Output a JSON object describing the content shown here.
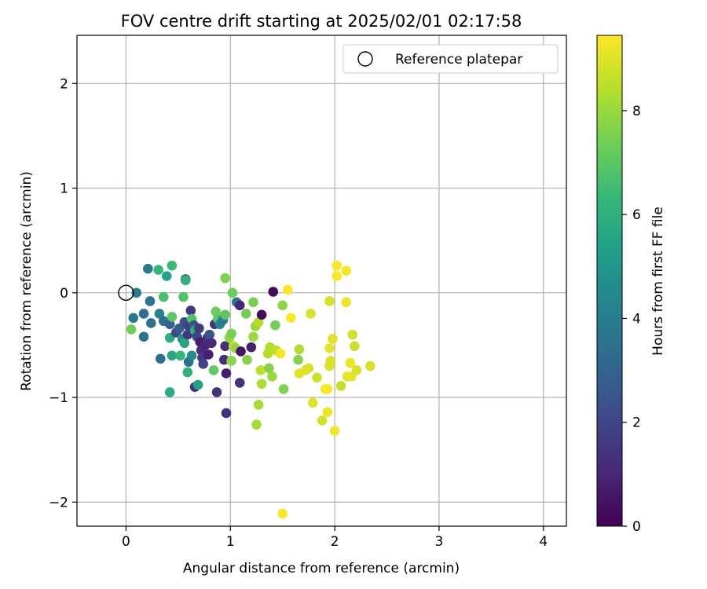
{
  "chart_data": {
    "type": "scatter",
    "title": "FOV centre drift starting at 2025/02/01 02:17:58",
    "xlabel": "Angular distance from reference (arcmin)",
    "ylabel": "Rotation from reference (arcmin)",
    "xlim": [
      -0.47,
      4.22
    ],
    "ylim": [
      -2.23,
      2.46
    ],
    "xticks": [
      0,
      1,
      2,
      3,
      4
    ],
    "yticks": [
      2,
      1,
      0,
      -1,
      -2
    ],
    "grid": true,
    "legend": {
      "position": "top-right",
      "entries": [
        "Reference platepar"
      ]
    },
    "reference_point": {
      "x": 0,
      "y": 0,
      "label": "Reference platepar"
    },
    "colorbar": {
      "label": "Hours from first FF file",
      "range": [
        0,
        9.45
      ],
      "ticks": [
        0,
        2,
        4,
        6,
        8
      ],
      "colormap": "viridis",
      "colormap_stops": [
        "#440154",
        "#482878",
        "#3e4989",
        "#31688e",
        "#26828e",
        "#1f9e89",
        "#35b779",
        "#6ece58",
        "#b5de2b",
        "#fde725"
      ]
    },
    "points": [
      {
        "x": 0.1,
        "y": 0.0,
        "h": 3.9
      },
      {
        "x": 0.21,
        "y": 0.23,
        "h": 3.8
      },
      {
        "x": 0.23,
        "y": -0.08,
        "h": 3.6
      },
      {
        "x": 0.31,
        "y": 0.22,
        "h": 6.3
      },
      {
        "x": 0.39,
        "y": 0.16,
        "h": 5.5
      },
      {
        "x": 0.44,
        "y": 0.26,
        "h": 6.4
      },
      {
        "x": 0.36,
        "y": -0.04,
        "h": 6.6
      },
      {
        "x": 0.07,
        "y": -0.24,
        "h": 3.8
      },
      {
        "x": 0.05,
        "y": -0.35,
        "h": 7.4
      },
      {
        "x": 0.17,
        "y": -0.2,
        "h": 3.4
      },
      {
        "x": 0.24,
        "y": -0.29,
        "h": 3.5
      },
      {
        "x": 0.17,
        "y": -0.42,
        "h": 3.6
      },
      {
        "x": 0.32,
        "y": -0.2,
        "h": 4.2
      },
      {
        "x": 0.36,
        "y": -0.27,
        "h": 3.3
      },
      {
        "x": 0.42,
        "y": -0.3,
        "h": 2.9
      },
      {
        "x": 0.44,
        "y": -0.23,
        "h": 7.0
      },
      {
        "x": 0.42,
        "y": -0.43,
        "h": 5.9
      },
      {
        "x": 0.44,
        "y": -0.6,
        "h": 5.6
      },
      {
        "x": 0.33,
        "y": -0.63,
        "h": 3.4
      },
      {
        "x": 0.42,
        "y": -0.95,
        "h": 5.8
      },
      {
        "x": 0.48,
        "y": -0.38,
        "h": 2.1
      },
      {
        "x": 0.51,
        "y": -0.34,
        "h": 2.7
      },
      {
        "x": 0.52,
        "y": -0.6,
        "h": 6.2
      },
      {
        "x": 0.54,
        "y": -0.44,
        "h": 4.8
      },
      {
        "x": 0.56,
        "y": -0.48,
        "h": 5.6
      },
      {
        "x": 0.55,
        "y": -0.04,
        "h": 6.8
      },
      {
        "x": 0.57,
        "y": 0.13,
        "h": 1.9
      },
      {
        "x": 0.57,
        "y": 0.12,
        "h": 6.1
      },
      {
        "x": 0.56,
        "y": -0.28,
        "h": 2.3
      },
      {
        "x": 0.59,
        "y": -0.4,
        "h": 1.6
      },
      {
        "x": 0.6,
        "y": -0.32,
        "h": 1.8
      },
      {
        "x": 0.62,
        "y": -0.17,
        "h": 1.5
      },
      {
        "x": 0.63,
        "y": -0.25,
        "h": 6.8
      },
      {
        "x": 0.59,
        "y": -0.76,
        "h": 6.0
      },
      {
        "x": 0.6,
        "y": -0.66,
        "h": 3.3
      },
      {
        "x": 0.63,
        "y": -0.6,
        "h": 4.6
      },
      {
        "x": 0.65,
        "y": -0.31,
        "h": 2.5
      },
      {
        "x": 0.66,
        "y": -0.36,
        "h": 5.9
      },
      {
        "x": 0.68,
        "y": -0.42,
        "h": 2.0
      },
      {
        "x": 0.66,
        "y": -0.9,
        "h": 1.3
      },
      {
        "x": 0.69,
        "y": -0.88,
        "h": 5.4
      },
      {
        "x": 0.7,
        "y": -0.34,
        "h": 1.7
      },
      {
        "x": 0.71,
        "y": -0.47,
        "h": 0.8
      },
      {
        "x": 0.72,
        "y": -0.55,
        "h": 1.2
      },
      {
        "x": 0.73,
        "y": -0.62,
        "h": 1.6
      },
      {
        "x": 0.74,
        "y": -0.68,
        "h": 1.9
      },
      {
        "x": 0.76,
        "y": -0.5,
        "h": 1.0
      },
      {
        "x": 0.78,
        "y": -0.43,
        "h": 1.3
      },
      {
        "x": 0.79,
        "y": -0.59,
        "h": 0.9
      },
      {
        "x": 0.8,
        "y": -0.4,
        "h": 2.4
      },
      {
        "x": 0.82,
        "y": -0.48,
        "h": 1.1
      },
      {
        "x": 0.84,
        "y": -0.74,
        "h": 7.1
      },
      {
        "x": 0.85,
        "y": -0.3,
        "h": 1.4
      },
      {
        "x": 0.86,
        "y": -0.18,
        "h": 7.3
      },
      {
        "x": 0.87,
        "y": -0.95,
        "h": 1.4
      },
      {
        "x": 0.88,
        "y": -0.25,
        "h": 7.0
      },
      {
        "x": 0.9,
        "y": -0.3,
        "h": 4.3
      },
      {
        "x": 0.93,
        "y": -0.26,
        "h": 3.9
      },
      {
        "x": 0.94,
        "y": -0.64,
        "h": 1.2
      },
      {
        "x": 0.95,
        "y": -0.21,
        "h": 7.0
      },
      {
        "x": 0.95,
        "y": 0.14,
        "h": 7.6
      },
      {
        "x": 0.95,
        "y": -0.51,
        "h": 1.3
      },
      {
        "x": 0.96,
        "y": -0.77,
        "h": 0.8
      },
      {
        "x": 0.96,
        "y": -1.15,
        "h": 1.3
      },
      {
        "x": 0.99,
        "y": -0.43,
        "h": 7.9
      },
      {
        "x": 1.01,
        "y": -0.39,
        "h": 7.5
      },
      {
        "x": 1.01,
        "y": -0.65,
        "h": 7.8
      },
      {
        "x": 1.02,
        "y": 0.0,
        "h": 7.3
      },
      {
        "x": 1.03,
        "y": -0.51,
        "h": 8.5
      },
      {
        "x": 1.05,
        "y": -0.53,
        "h": 7.9
      },
      {
        "x": 1.06,
        "y": -0.09,
        "h": 3.8
      },
      {
        "x": 1.09,
        "y": -0.12,
        "h": 1.0
      },
      {
        "x": 1.1,
        "y": -0.56,
        "h": 0.5
      },
      {
        "x": 1.09,
        "y": -0.86,
        "h": 1.3
      },
      {
        "x": 1.15,
        "y": -0.2,
        "h": 7.4
      },
      {
        "x": 1.16,
        "y": -0.64,
        "h": 7.7
      },
      {
        "x": 1.2,
        "y": -0.52,
        "h": 0.8
      },
      {
        "x": 1.22,
        "y": -0.09,
        "h": 7.5
      },
      {
        "x": 1.22,
        "y": -0.42,
        "h": 8.0
      },
      {
        "x": 1.24,
        "y": -0.32,
        "h": 8.0
      },
      {
        "x": 1.25,
        "y": -1.26,
        "h": 8.2
      },
      {
        "x": 1.27,
        "y": -0.28,
        "h": 8.4
      },
      {
        "x": 1.27,
        "y": -1.07,
        "h": 8.2
      },
      {
        "x": 1.3,
        "y": -0.21,
        "h": 0.2
      },
      {
        "x": 1.29,
        "y": -0.74,
        "h": 8.5
      },
      {
        "x": 1.3,
        "y": -0.87,
        "h": 8.3
      },
      {
        "x": 1.36,
        "y": -0.58,
        "h": 8.4
      },
      {
        "x": 1.37,
        "y": -0.72,
        "h": 7.7
      },
      {
        "x": 1.38,
        "y": -0.52,
        "h": 8.4
      },
      {
        "x": 1.4,
        "y": -0.8,
        "h": 8.0
      },
      {
        "x": 1.41,
        "y": 0.01,
        "h": 0.3
      },
      {
        "x": 1.43,
        "y": -0.31,
        "h": 7.4
      },
      {
        "x": 1.44,
        "y": -0.55,
        "h": 8.5
      },
      {
        "x": 1.48,
        "y": -0.58,
        "h": 9.3
      },
      {
        "x": 1.5,
        "y": -0.12,
        "h": 7.8
      },
      {
        "x": 1.51,
        "y": -0.92,
        "h": 7.6
      },
      {
        "x": 1.55,
        "y": 0.03,
        "h": 9.4
      },
      {
        "x": 1.58,
        "y": -0.24,
        "h": 9.4
      },
      {
        "x": 1.5,
        "y": -2.11,
        "h": 9.4
      },
      {
        "x": 1.65,
        "y": -0.64,
        "h": 7.7
      },
      {
        "x": 1.66,
        "y": -0.77,
        "h": 9.0
      },
      {
        "x": 1.66,
        "y": -0.54,
        "h": 8.3
      },
      {
        "x": 1.72,
        "y": -0.74,
        "h": 9.0
      },
      {
        "x": 1.75,
        "y": -0.72,
        "h": 8.9
      },
      {
        "x": 1.77,
        "y": -0.2,
        "h": 8.9
      },
      {
        "x": 1.79,
        "y": -1.05,
        "h": 9.0
      },
      {
        "x": 1.83,
        "y": -0.81,
        "h": 8.7
      },
      {
        "x": 1.88,
        "y": -1.22,
        "h": 8.8
      },
      {
        "x": 1.91,
        "y": -0.92,
        "h": 9.4
      },
      {
        "x": 1.93,
        "y": -0.92,
        "h": 9.4
      },
      {
        "x": 1.93,
        "y": -1.14,
        "h": 9.2
      },
      {
        "x": 1.95,
        "y": -0.08,
        "h": 8.9
      },
      {
        "x": 1.95,
        "y": -0.7,
        "h": 9.0
      },
      {
        "x": 1.95,
        "y": -0.53,
        "h": 9.1
      },
      {
        "x": 1.96,
        "y": -0.65,
        "h": 8.9
      },
      {
        "x": 1.98,
        "y": -0.44,
        "h": 9.0
      },
      {
        "x": 2.0,
        "y": -1.32,
        "h": 9.3
      },
      {
        "x": 2.02,
        "y": 0.26,
        "h": 9.4
      },
      {
        "x": 2.02,
        "y": 0.16,
        "h": 9.4
      },
      {
        "x": 2.06,
        "y": -0.89,
        "h": 8.6
      },
      {
        "x": 2.11,
        "y": 0.21,
        "h": 9.3
      },
      {
        "x": 2.11,
        "y": -0.09,
        "h": 9.2
      },
      {
        "x": 2.12,
        "y": -0.8,
        "h": 9.1
      },
      {
        "x": 2.15,
        "y": -0.67,
        "h": 9.2
      },
      {
        "x": 2.16,
        "y": -0.8,
        "h": 9.1
      },
      {
        "x": 2.17,
        "y": -0.4,
        "h": 8.8
      },
      {
        "x": 2.19,
        "y": -0.51,
        "h": 8.7
      },
      {
        "x": 2.21,
        "y": -0.74,
        "h": 8.9
      },
      {
        "x": 2.34,
        "y": -0.7,
        "h": 8.9
      }
    ]
  }
}
